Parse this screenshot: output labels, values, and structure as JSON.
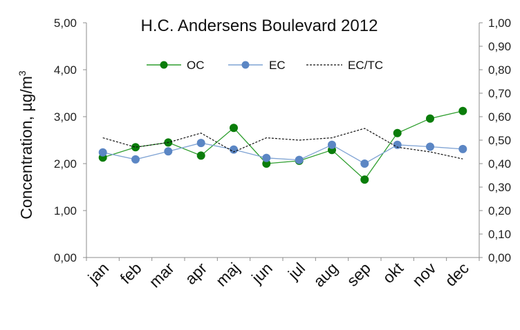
{
  "chart_data": {
    "type": "line",
    "title": "H.C. Andersens Boulevard 2012",
    "categories": [
      "jan",
      "feb",
      "mar",
      "apr",
      "maj",
      "jun",
      "jul",
      "aug",
      "sep",
      "okt",
      "nov",
      "dec"
    ],
    "ylabel": "Concentration, µg/m",
    "ylabel_superscript": "3",
    "y_left": {
      "range": [
        0,
        5
      ],
      "ticks": [
        "0,00",
        "1,00",
        "2,00",
        "3,00",
        "4,00",
        "5,00"
      ]
    },
    "y_right": {
      "range": [
        0,
        1
      ],
      "ticks": [
        "0,00",
        "0,10",
        "0,20",
        "0,30",
        "0,40",
        "0,50",
        "0,60",
        "0,70",
        "0,80",
        "0,90",
        "1,00"
      ]
    },
    "grid": false,
    "legend_position": "top",
    "series": [
      {
        "name": "OC",
        "axis": "left",
        "style": "line-markers",
        "color": "#0a7d0a",
        "line_color": "#2e9e2e",
        "values": [
          2.13,
          2.35,
          2.45,
          2.17,
          2.76,
          2.0,
          2.06,
          2.29,
          1.66,
          2.65,
          2.96,
          3.12
        ]
      },
      {
        "name": "EC",
        "axis": "left",
        "style": "line-markers",
        "color": "#5b86c4",
        "line_color": "#7fa3d4",
        "values": [
          2.24,
          2.09,
          2.26,
          2.44,
          2.3,
          2.12,
          2.08,
          2.4,
          2.0,
          2.4,
          2.36,
          2.31
        ]
      },
      {
        "name": "EC/TC",
        "axis": "right",
        "style": "dashed",
        "color": "#111111",
        "values": [
          0.51,
          0.47,
          0.49,
          0.53,
          0.45,
          0.51,
          0.5,
          0.51,
          0.55,
          0.47,
          0.45,
          0.42
        ]
      }
    ]
  }
}
